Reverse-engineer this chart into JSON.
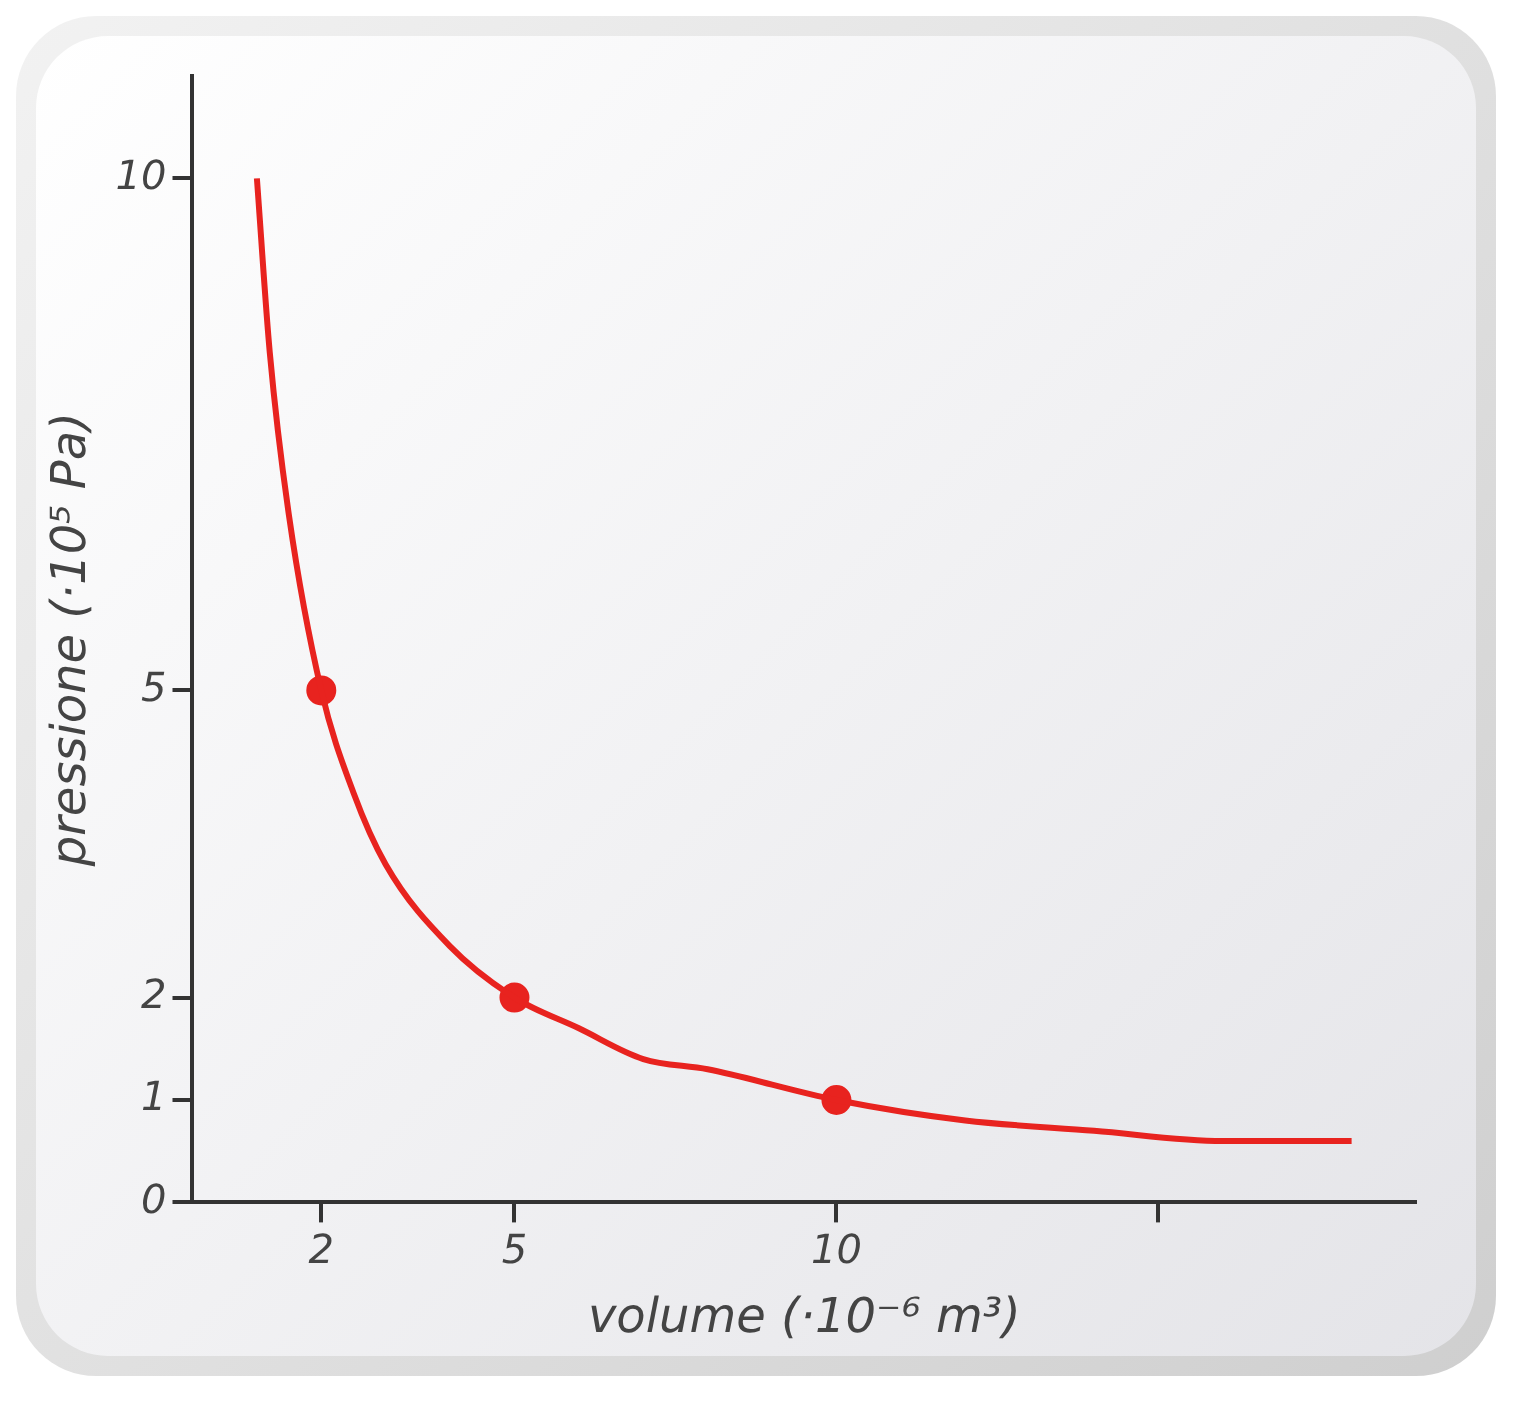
{
  "chart_data": {
    "type": "line",
    "xlabel": "volume (·10⁻⁶ m³)",
    "ylabel": "pressione (·10⁵ Pa)",
    "xlim": [
      0,
      19
    ],
    "xticks": [
      2,
      5,
      10,
      {
        "value": 15,
        "label": null
      }
    ],
    "ylim": [
      0,
      11
    ],
    "yticks": [
      0,
      1,
      2,
      5,
      10
    ],
    "series": [
      {
        "color": "#e8231f",
        "marker": "none",
        "x": [
          1,
          1.2,
          1.5,
          2,
          2.5,
          3,
          4,
          5,
          6,
          7,
          8,
          10,
          12,
          14,
          16,
          18
        ],
        "values": [
          10,
          8.3,
          6.7,
          5,
          4,
          3.3,
          2.5,
          2,
          1.7,
          1.4,
          1.3,
          1,
          0.8,
          0.7,
          0.6,
          0.6
        ]
      },
      {
        "type": "scatter",
        "color": "#e8231f",
        "marker": "circle",
        "x": [
          2,
          5,
          10
        ],
        "values": [
          5,
          2,
          1
        ]
      }
    ]
  }
}
